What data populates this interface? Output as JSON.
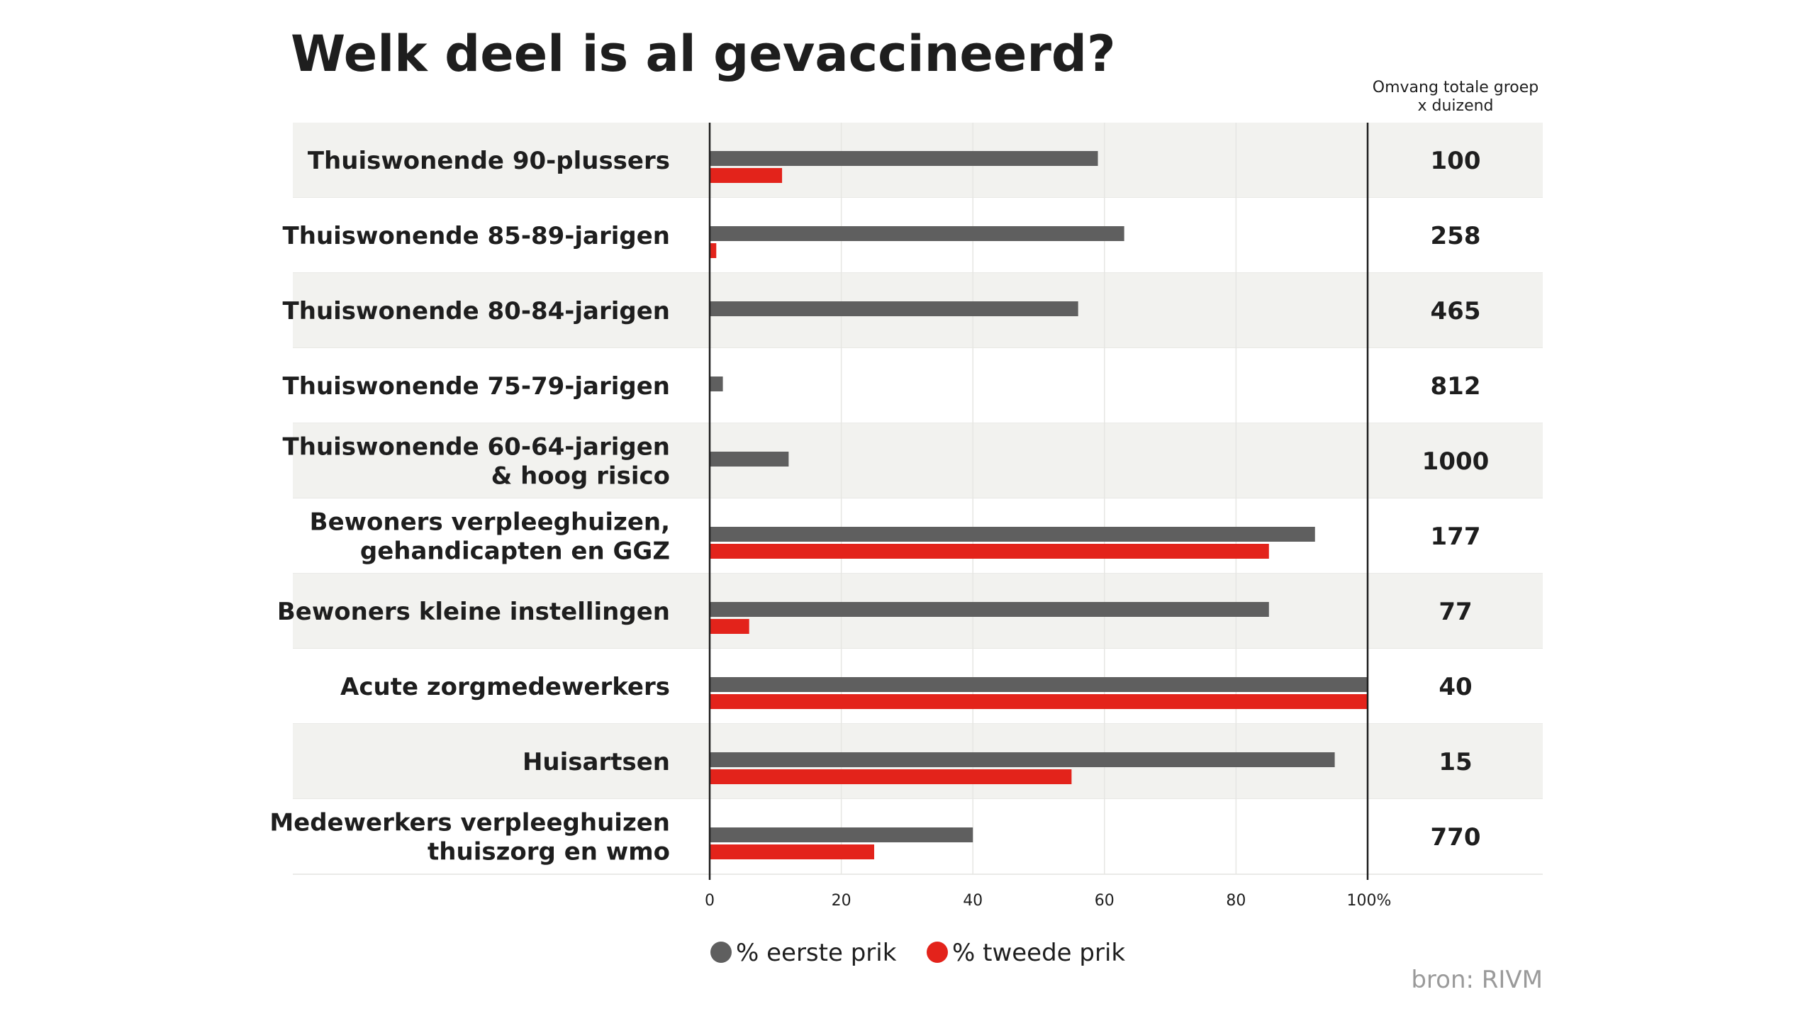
{
  "title": "Welk deel is al gevaccineerd?",
  "size_column": {
    "header_lines": [
      "Omvang totale groep",
      "x duizend"
    ]
  },
  "colors": {
    "first_dose": "#5f5f5f",
    "second_dose": "#e3231b",
    "band": "#f2f2ef",
    "axis": "#1e1e1e",
    "grid": "#e6e6e3",
    "source": "#9a9a9a"
  },
  "legend": {
    "first": "% eerste prik",
    "second": "% tweede prik"
  },
  "source": "bron: RIVM",
  "chart_data": {
    "type": "bar",
    "orientation": "horizontal",
    "title": "Welk deel is al gevaccineerd?",
    "xlim": [
      0,
      100
    ],
    "grid": true,
    "legend_position": "bottom-center",
    "x_ticks": [
      "0",
      "20",
      "40",
      "60",
      "80",
      "100%"
    ],
    "categories": [
      [
        "Thuiswonende 90-plussers"
      ],
      [
        "Thuiswonende 85-89-jarigen"
      ],
      [
        "Thuiswonende 80-84-jarigen"
      ],
      [
        "Thuiswonende 75-79-jarigen"
      ],
      [
        "Thuiswonende 60-64-jarigen",
        "& hoog risico"
      ],
      [
        "Bewoners verpleeghuizen,",
        "gehandicapten en GGZ"
      ],
      [
        "Bewoners kleine instellingen"
      ],
      [
        "Acute zorgmedewerkers"
      ],
      [
        "Huisartsen"
      ],
      [
        "Medewerkers verpleeghuizen",
        "thuiszorg en wmo"
      ]
    ],
    "group_size_thousands": [
      "100",
      "258",
      "465",
      "812",
      "1000",
      "177",
      "77",
      "40",
      "15",
      "770"
    ],
    "series": [
      {
        "name": "% eerste prik",
        "values": [
          59,
          63,
          56,
          2,
          12,
          92,
          85,
          100,
          95,
          40
        ]
      },
      {
        "name": "% tweede prik",
        "values": [
          11,
          1,
          0,
          0,
          0,
          85,
          6,
          100,
          55,
          25
        ]
      }
    ]
  }
}
